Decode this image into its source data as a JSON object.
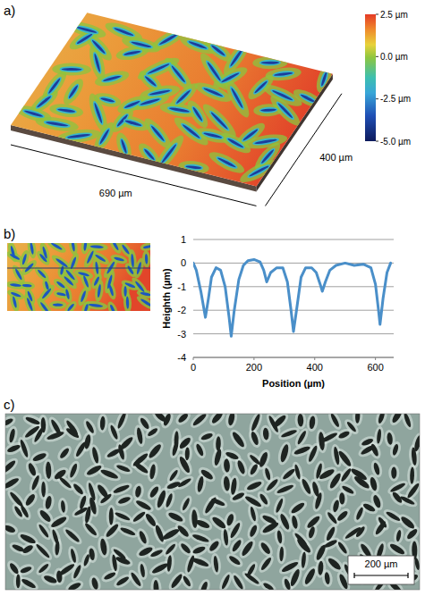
{
  "chart_data": [
    {
      "type": "surface",
      "panel_label": "a)",
      "colorbar_range": [
        -5,
        2.5
      ],
      "colorbar_ticks": [
        {
          "value": 2.5,
          "label": "2.5 µm"
        },
        {
          "value": 0,
          "label": "0.0 µm"
        },
        {
          "value": -2.5,
          "label": "-2.5 µm"
        },
        {
          "value": -5,
          "label": "-5.0 µm"
        }
      ],
      "dimensions": [
        {
          "value": 690,
          "label": "690 µm"
        },
        {
          "value": 400,
          "label": "400 µm"
        }
      ]
    },
    {
      "type": "line",
      "panel_label": "b)",
      "color": "#4a8fc9",
      "x": [
        0,
        10,
        25,
        40,
        50,
        60,
        75,
        90,
        105,
        118,
        125,
        135,
        150,
        165,
        180,
        200,
        220,
        232,
        242,
        255,
        275,
        295,
        310,
        322,
        330,
        340,
        355,
        370,
        390,
        405,
        418,
        425,
        435,
        450,
        470,
        500,
        530,
        560,
        585,
        600,
        610,
        615,
        625,
        638,
        650
      ],
      "values": [
        0,
        -0.3,
        -1.2,
        -2.3,
        -1.5,
        -0.6,
        -0.2,
        -0.3,
        -1.0,
        -2.3,
        -3.1,
        -2.0,
        -0.7,
        -0.1,
        0.1,
        0.15,
        0.05,
        -0.3,
        -0.8,
        -0.4,
        -0.2,
        -0.2,
        -0.8,
        -2.0,
        -2.9,
        -2.0,
        -0.6,
        -0.2,
        -0.2,
        -0.4,
        -0.9,
        -1.2,
        -0.8,
        -0.3,
        -0.1,
        0,
        -0.1,
        -0.05,
        -0.2,
        -0.9,
        -2.0,
        -2.6,
        -1.5,
        -0.4,
        0
      ],
      "xlim": [
        0,
        660
      ],
      "xticks": [
        0,
        200,
        400,
        600
      ],
      "ylim": [
        -4,
        1
      ],
      "yticks": [
        -4,
        -3,
        -2,
        -1,
        0,
        1
      ],
      "grid": true,
      "x_label": "Position (µm)",
      "y_label": "Heighth (µm)"
    },
    {
      "type": "image",
      "panel_label": "c)",
      "scale_bar": {
        "value": 200,
        "label": "200 µm"
      }
    }
  ]
}
